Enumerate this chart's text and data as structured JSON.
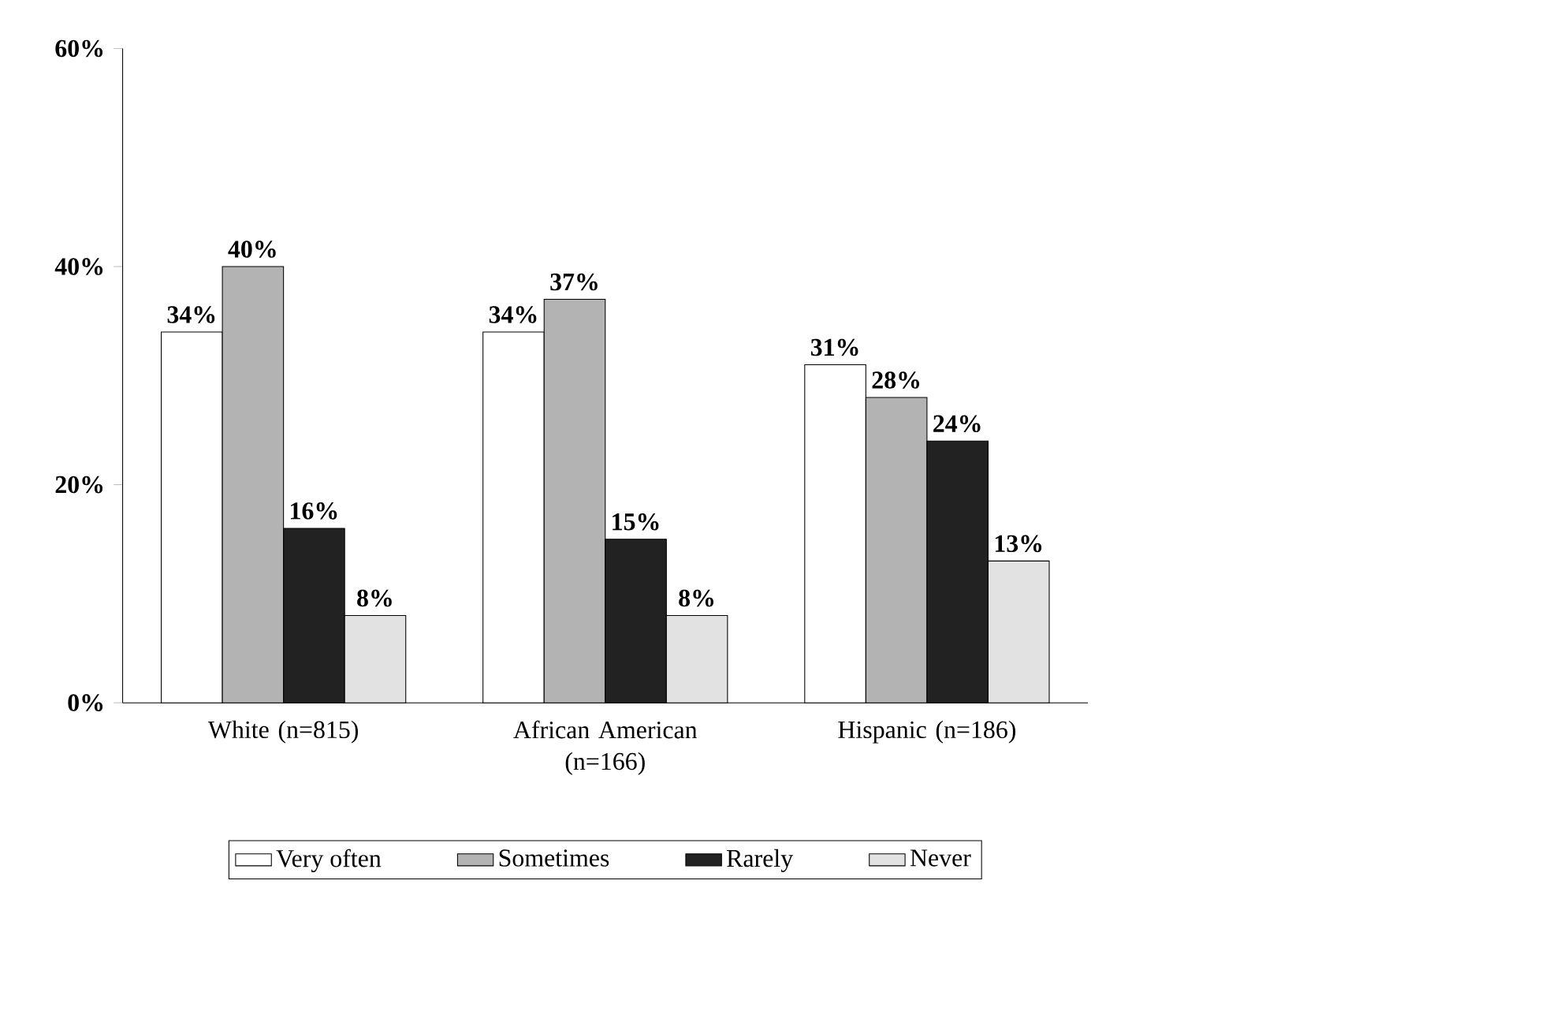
{
  "chart_data": {
    "type": "bar",
    "categories": [
      "White (n=815)",
      "African American (n=166)",
      "Hispanic (n=186)"
    ],
    "series": [
      {
        "name": "Very often",
        "color": "#ffffff",
        "values": [
          34,
          34,
          31
        ],
        "value_labels": [
          "34%",
          "34%",
          "31%"
        ]
      },
      {
        "name": "Sometimes",
        "color": "#b3b3b3",
        "values": [
          40,
          37,
          28
        ],
        "value_labels": [
          "40%",
          "37%",
          "28%"
        ]
      },
      {
        "name": "Rarely",
        "color": "#222222",
        "values": [
          16,
          15,
          24
        ],
        "value_labels": [
          "16%",
          "15%",
          "24%"
        ]
      },
      {
        "name": "Never",
        "color": "#e2e2e2",
        "values": [
          8,
          8,
          13
        ],
        "value_labels": [
          "8%",
          "8%",
          "13%"
        ]
      }
    ],
    "ylim": [
      0,
      60
    ],
    "yticks": [
      {
        "value": 0,
        "label": "0%"
      },
      {
        "value": 20,
        "label": "20%"
      },
      {
        "value": 40,
        "label": "40%"
      },
      {
        "value": 60,
        "label": "60%"
      }
    ],
    "grid": false,
    "legend": "bottom"
  }
}
